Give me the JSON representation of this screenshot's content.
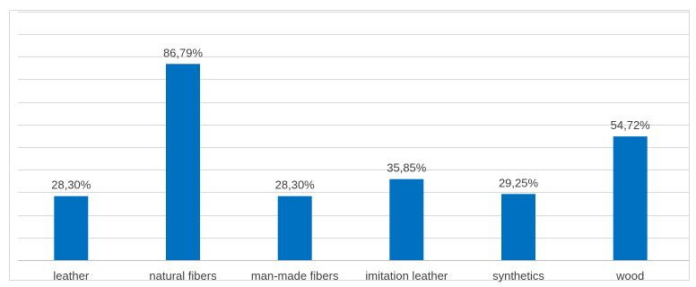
{
  "colors": {
    "bar": "#0070c0",
    "grid": "#d9d9d9",
    "text": "#404040"
  },
  "chart_data": {
    "type": "bar",
    "categories": [
      "leather",
      "natural fibers",
      "man-made fibers",
      "imitation leather",
      "synthetics",
      "wood"
    ],
    "values": [
      28.3,
      86.79,
      28.3,
      35.85,
      29.25,
      54.72
    ],
    "value_labels": [
      "28,30%",
      "86,79%",
      "28,30%",
      "35,85%",
      "29,25%",
      "54,72%"
    ],
    "ylim": [
      0,
      110
    ],
    "y_gridline_step": 10,
    "y_axis_visible": false,
    "grid": true,
    "legend": false,
    "title": "",
    "xlabel": "",
    "ylabel": ""
  }
}
